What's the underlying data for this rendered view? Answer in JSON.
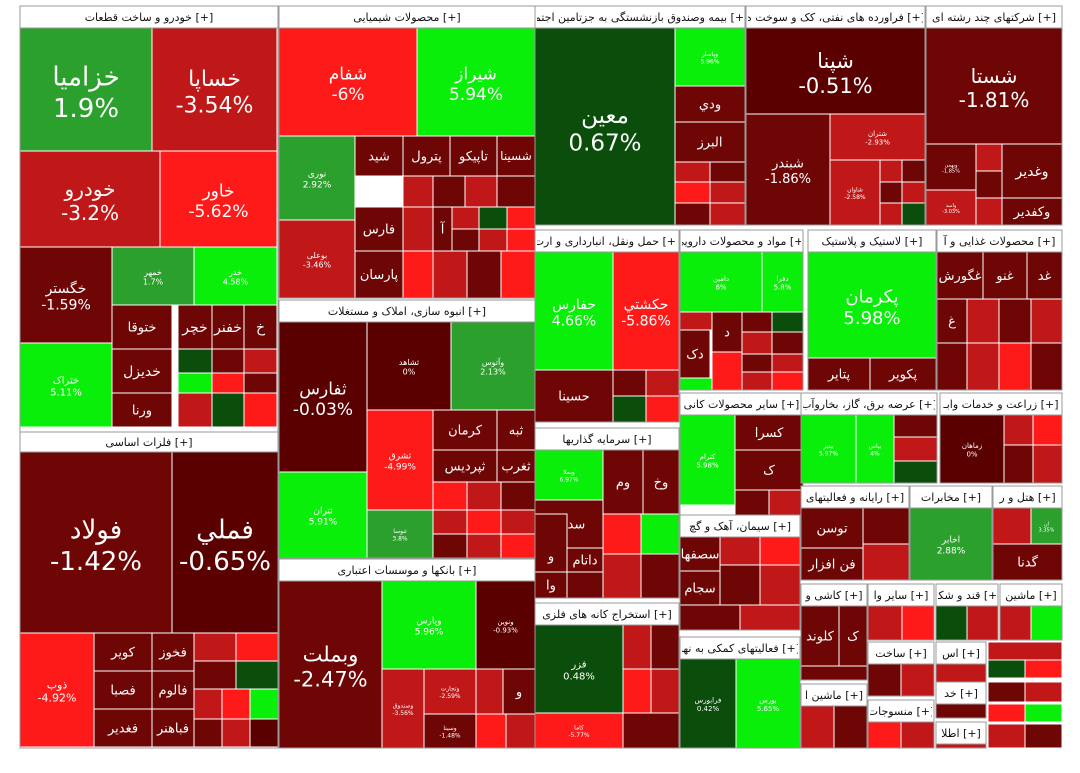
{
  "colors": {
    "up_strong": "#0aef0a",
    "up": "#2ca02c",
    "up_dark": "#0b4d0b",
    "flat_dark": "#5a0000",
    "down_dark": "#6e0606",
    "down": "#c01818",
    "down_strong": "#ff1a1a"
  },
  "chart_data": {
    "type": "heatmap",
    "groups": [
      {
        "label": "خودرو و ساخت قطعات [+]",
        "stocks": [
          {
            "name": "خزامیا",
            "value": "1.9%"
          },
          {
            "name": "خساپا",
            "value": "-3.54%"
          },
          {
            "name": "خودرو",
            "value": "-3.2%"
          },
          {
            "name": "خاور",
            "value": "-5.62%"
          },
          {
            "name": "خگستر",
            "value": "-1.59%"
          },
          {
            "name": "خمهر",
            "value": "1.7%"
          },
          {
            "name": "خدر",
            "value": "4.58%"
          },
          {
            "name": "خچر"
          },
          {
            "name": "خفنر"
          },
          {
            "name": "خ"
          },
          {
            "name": "ختوقا"
          },
          {
            "name": "ختراک",
            "value": "5.11%"
          },
          {
            "name": "خدیزل"
          },
          {
            "name": "ورنا"
          }
        ]
      },
      {
        "label": "فلزات اساسی [+]",
        "stocks": [
          {
            "name": "فولاد",
            "value": "-1.42%"
          },
          {
            "name": "فملي",
            "value": "-0.65%"
          },
          {
            "name": "ذوب",
            "value": "-4.92%"
          },
          {
            "name": "کویر"
          },
          {
            "name": "فخوز"
          },
          {
            "name": "فصبا"
          },
          {
            "name": "فالوم"
          },
          {
            "name": "فغدیر"
          },
          {
            "name": "فباهنر"
          }
        ]
      },
      {
        "label": "محصولات شیمیایی [+]",
        "stocks": [
          {
            "name": "شفام",
            "value": "-6%"
          },
          {
            "name": "شیراز",
            "value": "5.94%"
          },
          {
            "name": "نوری",
            "value": "2.92%"
          },
          {
            "name": "شید"
          },
          {
            "name": "پترول"
          },
          {
            "name": "تاپیکو"
          },
          {
            "name": "شسینا"
          },
          {
            "name": "فارس"
          },
          {
            "name": "آ"
          },
          {
            "name": "بوعلی",
            "value": "-3.46%"
          },
          {
            "name": "پارسان"
          }
        ]
      },
      {
        "label": "انبوه سازی، املاک و مستغلات [+]",
        "stocks": [
          {
            "name": "ثفارس",
            "value": "-0.03%"
          },
          {
            "name": "ثشاهد",
            "value": "0%"
          },
          {
            "name": "وآتوس",
            "value": "2.13%"
          },
          {
            "name": "ثبه"
          },
          {
            "name": "کرمان"
          },
          {
            "name": "ثشرق",
            "value": "-4.99%"
          },
          {
            "name": "ثپردیس"
          },
          {
            "name": "ثغرب"
          },
          {
            "name": "ثتران",
            "value": "5.91%"
          },
          {
            "name": "ثنوسا",
            "value": "3.8%"
          }
        ]
      },
      {
        "label": "بانکها و موسسات اعتباری [+]",
        "stocks": [
          {
            "name": "وبملت",
            "value": "-2.47%"
          },
          {
            "name": "وپارس",
            "value": "5.96%"
          },
          {
            "name": "ونوین",
            "value": "-0.93%"
          },
          {
            "name": "وتجارت",
            "value": "-2.59%"
          },
          {
            "name": "وصندوق",
            "value": "-3.56%"
          },
          {
            "name": "وسینا",
            "value": "-1.48%"
          },
          {
            "name": "و"
          }
        ]
      },
      {
        "label": "بیمه وصندوق بازنشستگی به جزتامین اجتما [+]",
        "stocks": [
          {
            "name": "معین",
            "value": "0.67%"
          },
          {
            "name": "وپاسار",
            "value": "5.96%"
          },
          {
            "name": "ودي"
          },
          {
            "name": "البرز"
          }
        ]
      },
      {
        "label": "فراورده های نفتی، کک و سوخت ه [+]",
        "stocks": [
          {
            "name": "شپنا",
            "value": "-0.51%"
          },
          {
            "name": "شبندر",
            "value": "-1.86%"
          },
          {
            "name": "شتران",
            "value": "-2.93%"
          },
          {
            "name": "شاوان",
            "value": "-2.58%"
          }
        ]
      },
      {
        "label": "شرکتهای چند رشته ای [+]",
        "stocks": [
          {
            "name": "شستا",
            "value": "-1.81%"
          },
          {
            "name": "وغدیر"
          },
          {
            "name": "وکفدیر"
          },
          {
            "name": "وبهمن",
            "value": "-1.85%"
          },
          {
            "name": "وامید",
            "value": "-3.03%"
          }
        ]
      },
      {
        "label": "حمل ونقل، انبارداری و ارت [+]",
        "stocks": [
          {
            "name": "حفارس",
            "value": "4.66%"
          },
          {
            "name": "حکشتي",
            "value": "-5.86%"
          },
          {
            "name": "حسینا"
          }
        ]
      },
      {
        "label": "مواد و محصولات دارویی [+]",
        "stocks": [
          {
            "name": "دامین",
            "value": "6%"
          },
          {
            "name": "دفرا",
            "value": "5.8%"
          },
          {
            "name": "د"
          },
          {
            "name": "دک"
          }
        ]
      },
      {
        "label": "لاستیک و پلاستیک [+]",
        "stocks": [
          {
            "name": "پکرمان",
            "value": "5.98%"
          },
          {
            "name": "پتایر"
          },
          {
            "name": "پکویر"
          }
        ]
      },
      {
        "label": "محصولات غذایی و آ [+]",
        "stocks": [
          {
            "name": "غگورش"
          },
          {
            "name": "غنو"
          },
          {
            "name": "غد"
          },
          {
            "name": "غ"
          }
        ]
      },
      {
        "label": "سرمایه گذاریها [+]",
        "stocks": [
          {
            "name": "وبملا",
            "value": "6.97%"
          },
          {
            "name": "وم"
          },
          {
            "name": "وخ"
          },
          {
            "name": "سدبیر"
          },
          {
            "name": "داتام"
          },
          {
            "name": "و"
          },
          {
            "name": "وا"
          }
        ]
      },
      {
        "label": "سایر محصولات کانی [+]",
        "stocks": [
          {
            "name": "کسرا"
          },
          {
            "name": "کترام",
            "value": "5.98%"
          },
          {
            "name": "ک"
          }
        ]
      },
      {
        "label": "عرضه برق، گاز، بخاروآب [+]",
        "stocks": [
          {
            "name": "بپتیر",
            "value": "5.97%"
          },
          {
            "name": "بپاس",
            "value": "4%"
          }
        ]
      },
      {
        "label": "زراعت و خدمات وابـ [+]",
        "stocks": [
          {
            "name": "زماهان",
            "value": "0%"
          }
        ]
      },
      {
        "label": "استخراج کانه های فلزی [+]",
        "stocks": [
          {
            "name": "فزر",
            "value": "0.48%"
          },
          {
            "name": "کاما",
            "value": "-5.77%"
          }
        ]
      },
      {
        "label": "سیمان، آهک و گچ [+]",
        "stocks": [
          {
            "name": "سصفها"
          },
          {
            "name": "سجام"
          }
        ]
      },
      {
        "label": "رایانه و فعالیتهای [+]",
        "stocks": [
          {
            "name": "توسن"
          },
          {
            "name": "فن افزار"
          }
        ]
      },
      {
        "label": "مخابرات [+]",
        "stocks": [
          {
            "name": "اخابر",
            "value": "2.88%"
          }
        ]
      },
      {
        "label": "هتل و ر [+]",
        "stocks": [
          {
            "name": "ان",
            "value": "3.35%"
          },
          {
            "name": "گدنا"
          }
        ]
      },
      {
        "label": "فعالیتهای کمکی به نها [+]",
        "stocks": [
          {
            "name": "فرابورس",
            "value": "0.42%"
          },
          {
            "name": "بورس",
            "value": "5.65%"
          }
        ]
      },
      {
        "label": "کاشی و [+]",
        "stocks": [
          {
            "name": "کلوند"
          },
          {
            "name": "ک"
          }
        ]
      },
      {
        "label": "سایر وا [+]",
        "stocks": []
      },
      {
        "label": "قند و شکر [+]",
        "stocks": []
      },
      {
        "label": "ماشین [+]",
        "stocks": []
      },
      {
        "label": "ساخت [+]",
        "stocks": []
      },
      {
        "label": "ماشین ا [+]",
        "stocks": []
      },
      {
        "label": "منسوجات [+]",
        "stocks": []
      },
      {
        "label": "اس [+]",
        "stocks": []
      },
      {
        "label": "خد [+]",
        "stocks": []
      },
      {
        "label": "اطلا [+]",
        "stocks": []
      }
    ]
  }
}
